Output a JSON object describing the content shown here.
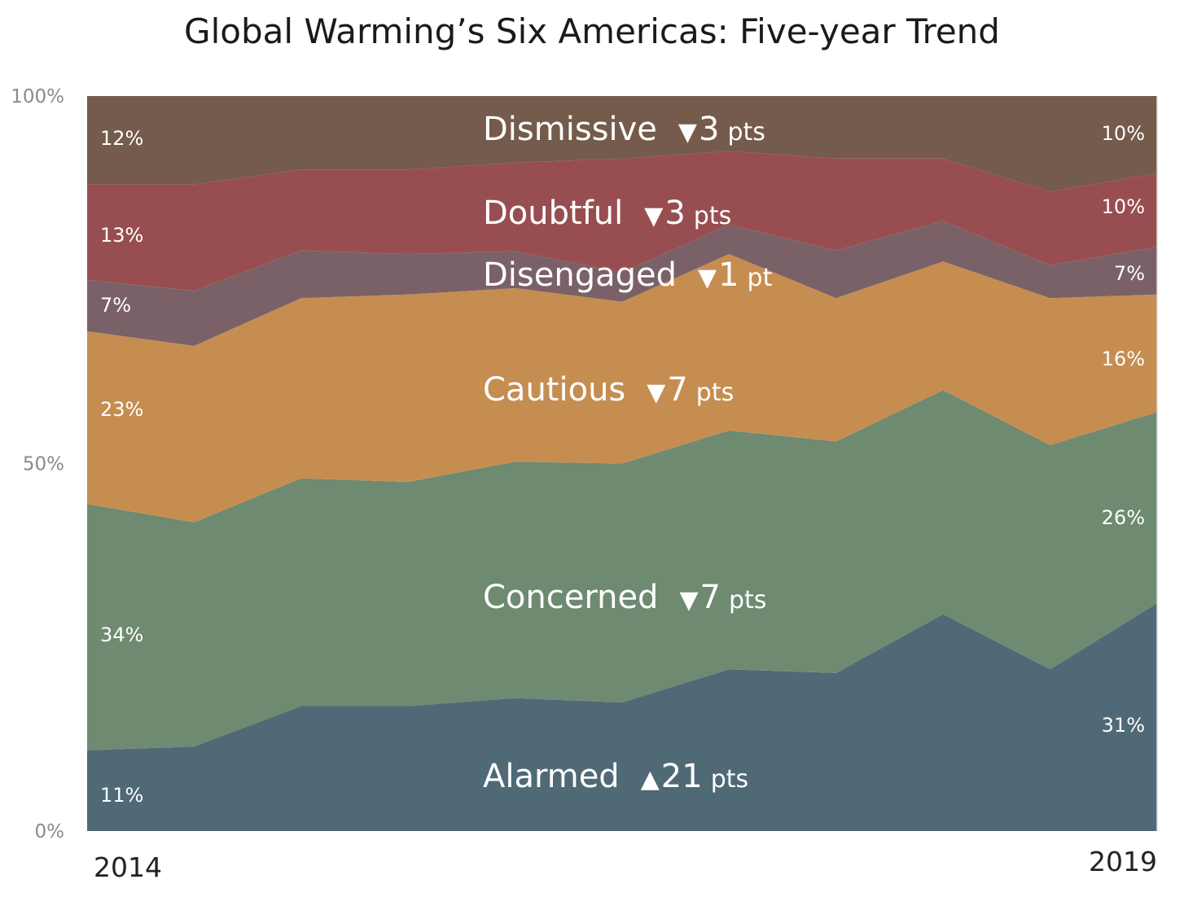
{
  "chart_data": {
    "type": "area",
    "stacked": true,
    "title": "Global Warming’s Six Americas: Five-year Trend",
    "x_tick_labels": [
      "2014",
      "2019"
    ],
    "y_tick_labels": [
      "100%",
      "50%",
      "0%"
    ],
    "ylim": [
      0,
      100
    ],
    "series": [
      {
        "name": "Alarmed",
        "color": "#4f6976",
        "start_label": "11%",
        "end_label": "31%",
        "change": "▲21 pts",
        "change_arrow": "▲",
        "change_num": "21",
        "change_unit": "pts",
        "values": [
          11,
          11.5,
          17,
          17,
          18,
          17.5,
          22,
          21.5,
          29.5,
          22,
          31
        ]
      },
      {
        "name": "Concerned",
        "color": "#6e8a71",
        "start_label": "34%",
        "end_label": "26%",
        "change": "▼7 pts",
        "change_arrow": "▼",
        "change_num": "7",
        "change_unit": "pts",
        "values": [
          33.5,
          30.5,
          31,
          30.5,
          32,
          32.5,
          32.5,
          31.5,
          30.5,
          30.5,
          26
        ]
      },
      {
        "name": "Cautious",
        "color": "#c68d51",
        "start_label": "23%",
        "end_label": "16%",
        "change": "▼7 pts",
        "change_arrow": "▼",
        "change_num": "7",
        "change_unit": "pts",
        "values": [
          23.5,
          24,
          24.5,
          25.5,
          23.5,
          22,
          24,
          19.5,
          17.5,
          20,
          16
        ]
      },
      {
        "name": "Disengaged",
        "color": "#7a6168",
        "start_label": "7%",
        "end_label": "7%",
        "change": "▼1 pt",
        "change_arrow": "▼",
        "change_num": "1",
        "change_unit": "pt",
        "values": [
          7,
          7.5,
          6.5,
          5.5,
          5,
          4,
          4,
          6.5,
          5.5,
          4.5,
          6.5
        ]
      },
      {
        "name": "Doubtful",
        "color": "#984e51",
        "start_label": "13%",
        "end_label": "10%",
        "change": "▼3 pts",
        "change_arrow": "▼",
        "change_num": "3",
        "change_unit": "pts",
        "values": [
          13,
          14.5,
          11,
          11.5,
          12,
          15.5,
          10,
          12.5,
          8.5,
          10,
          10
        ]
      },
      {
        "name": "Dismissive",
        "color": "#745b4b",
        "start_label": "12%",
        "end_label": "10%",
        "change": "▼3 pts",
        "change_arrow": "▼",
        "change_num": "3",
        "change_unit": "pts",
        "values": [
          12,
          12,
          10,
          10,
          9,
          8.5,
          7.5,
          8.5,
          8.5,
          13,
          10.5
        ]
      }
    ]
  }
}
